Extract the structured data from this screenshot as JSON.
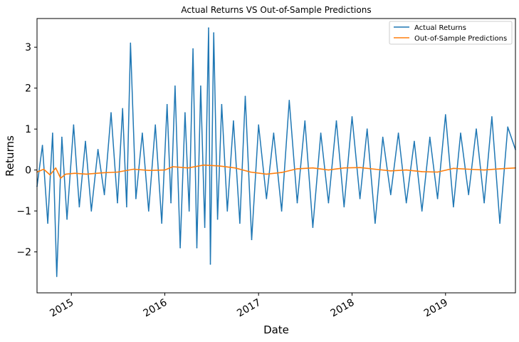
{
  "chart_data": {
    "type": "line",
    "title": "Actual Returns VS Out-of-Sample Predictions",
    "xlabel": "Date",
    "ylabel": "Returns",
    "x_range": [
      "2014-08-20",
      "2019-10-01"
    ],
    "ylim": [
      -3.0,
      3.7
    ],
    "x_ticks": [
      {
        "date": "2015-01-01",
        "label": "2015"
      },
      {
        "date": "2016-01-01",
        "label": "2016"
      },
      {
        "date": "2017-01-01",
        "label": "2017"
      },
      {
        "date": "2018-01-01",
        "label": "2018"
      },
      {
        "date": "2019-01-01",
        "label": "2019"
      }
    ],
    "y_ticks": [
      {
        "value": -2,
        "label": "−2"
      },
      {
        "value": -1,
        "label": "−1"
      },
      {
        "value": 0,
        "label": "0"
      },
      {
        "value": 1,
        "label": "1"
      },
      {
        "value": 2,
        "label": "2"
      },
      {
        "value": 3,
        "label": "3"
      }
    ],
    "grid": false,
    "legend_position": "top-right",
    "series": [
      {
        "name": "Actual Returns",
        "color": "#1f77b4",
        "x": [
          "2014-08-20",
          "2014-09-10",
          "2014-10-01",
          "2014-10-20",
          "2014-11-05",
          "2014-11-25",
          "2014-12-15",
          "2015-01-10",
          "2015-02-01",
          "2015-02-25",
          "2015-03-20",
          "2015-04-15",
          "2015-05-10",
          "2015-06-05",
          "2015-06-30",
          "2015-07-20",
          "2015-08-05",
          "2015-08-20",
          "2015-09-10",
          "2015-10-05",
          "2015-10-30",
          "2015-11-25",
          "2015-12-20",
          "2016-01-10",
          "2016-01-25",
          "2016-02-10",
          "2016-03-01",
          "2016-03-20",
          "2016-04-05",
          "2016-04-20",
          "2016-05-05",
          "2016-05-20",
          "2016-06-05",
          "2016-06-20",
          "2016-06-27",
          "2016-07-10",
          "2016-07-25",
          "2016-08-10",
          "2016-09-01",
          "2016-09-25",
          "2016-10-20",
          "2016-11-10",
          "2016-12-05",
          "2017-01-01",
          "2017-02-01",
          "2017-03-01",
          "2017-04-01",
          "2017-05-01",
          "2017-06-01",
          "2017-07-01",
          "2017-08-01",
          "2017-09-01",
          "2017-10-01",
          "2017-11-01",
          "2017-12-01",
          "2018-01-01",
          "2018-02-01",
          "2018-03-01",
          "2018-04-01",
          "2018-05-01",
          "2018-06-01",
          "2018-07-01",
          "2018-08-01",
          "2018-09-01",
          "2018-10-01",
          "2018-11-01",
          "2018-12-01",
          "2019-01-01",
          "2019-02-01",
          "2019-03-01",
          "2019-04-01",
          "2019-05-01",
          "2019-06-01",
          "2019-07-01",
          "2019-08-01",
          "2019-09-01",
          "2019-10-01"
        ],
        "values": [
          -0.4,
          0.6,
          -1.3,
          0.9,
          -2.6,
          0.8,
          -1.2,
          1.1,
          -0.9,
          0.7,
          -1.0,
          0.5,
          -0.6,
          1.4,
          -0.8,
          1.5,
          -0.9,
          3.1,
          -0.7,
          0.9,
          -1.0,
          1.1,
          -1.3,
          1.6,
          -0.8,
          2.05,
          -1.9,
          1.4,
          -1.0,
          2.96,
          -1.9,
          2.05,
          -1.4,
          3.47,
          -2.3,
          3.35,
          -1.2,
          1.6,
          -1.0,
          1.2,
          -1.3,
          1.8,
          -1.7,
          1.1,
          -0.7,
          0.9,
          -1.0,
          1.7,
          -0.8,
          1.2,
          -1.4,
          0.9,
          -0.8,
          1.2,
          -0.9,
          1.3,
          -0.7,
          1.0,
          -1.3,
          0.8,
          -0.6,
          0.9,
          -0.8,
          0.7,
          -1.0,
          0.8,
          -0.7,
          1.35,
          -0.9,
          0.9,
          -0.6,
          1.0,
          -0.8,
          1.3,
          -1.3,
          1.05,
          0.5
        ]
      },
      {
        "name": "Out-of-Sample Predictions",
        "color": "#ff7f0e",
        "x": [
          "2014-08-20",
          "2014-09-15",
          "2014-10-10",
          "2014-11-01",
          "2014-11-20",
          "2014-12-10",
          "2015-01-15",
          "2015-03-01",
          "2015-05-01",
          "2015-07-01",
          "2015-09-01",
          "2015-11-01",
          "2016-01-01",
          "2016-02-01",
          "2016-04-01",
          "2016-06-01",
          "2016-08-01",
          "2016-10-01",
          "2016-12-01",
          "2017-02-01",
          "2017-04-01",
          "2017-06-01",
          "2017-08-01",
          "2017-10-01",
          "2017-12-01",
          "2018-02-01",
          "2018-04-01",
          "2018-06-01",
          "2018-08-01",
          "2018-10-01",
          "2018-12-01",
          "2019-02-01",
          "2019-04-01",
          "2019-06-01",
          "2019-08-01",
          "2019-10-01"
        ],
        "values": [
          -0.05,
          0.02,
          -0.12,
          0.05,
          -0.2,
          -0.1,
          -0.08,
          -0.1,
          -0.07,
          -0.05,
          0.02,
          -0.01,
          0.0,
          0.08,
          0.05,
          0.12,
          0.1,
          0.05,
          -0.05,
          -0.1,
          -0.06,
          0.03,
          0.05,
          0.0,
          0.05,
          0.06,
          0.02,
          -0.02,
          0.0,
          -0.04,
          -0.05,
          0.04,
          0.02,
          0.0,
          0.03,
          0.05
        ]
      }
    ]
  }
}
